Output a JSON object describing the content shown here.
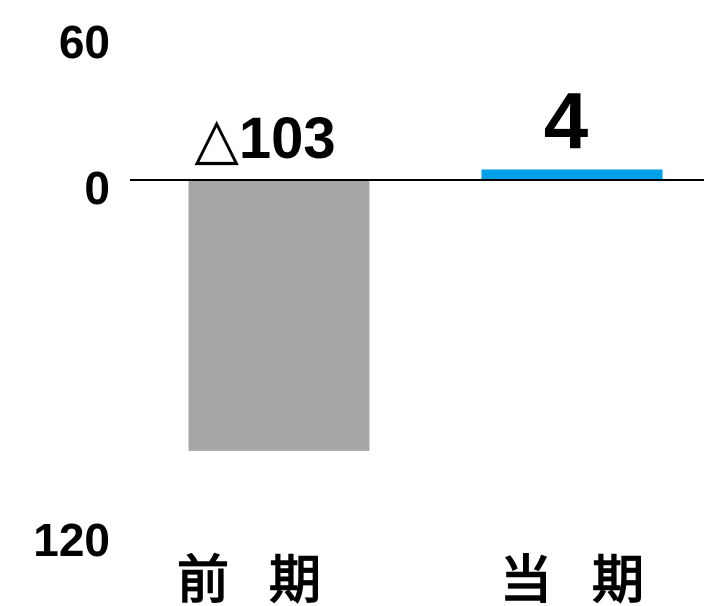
{
  "chart_data": {
    "type": "bar",
    "title": "",
    "xlabel": "",
    "ylabel": "",
    "categories": [
      "前期",
      "当期"
    ],
    "category_display": [
      "前 期",
      "当 期"
    ],
    "values": [
      -103,
      4
    ],
    "data_labels": [
      "△103",
      "4"
    ],
    "bar_colors": [
      "#a6a6a6",
      "#00a0e9"
    ],
    "y_ticks": [
      {
        "value": 60,
        "label": "60"
      },
      {
        "value": 0,
        "label": "0"
      },
      {
        "value": -120,
        "label": "120"
      }
    ],
    "ylim": [
      -120,
      60
    ],
    "grid": false,
    "legend": "none"
  }
}
